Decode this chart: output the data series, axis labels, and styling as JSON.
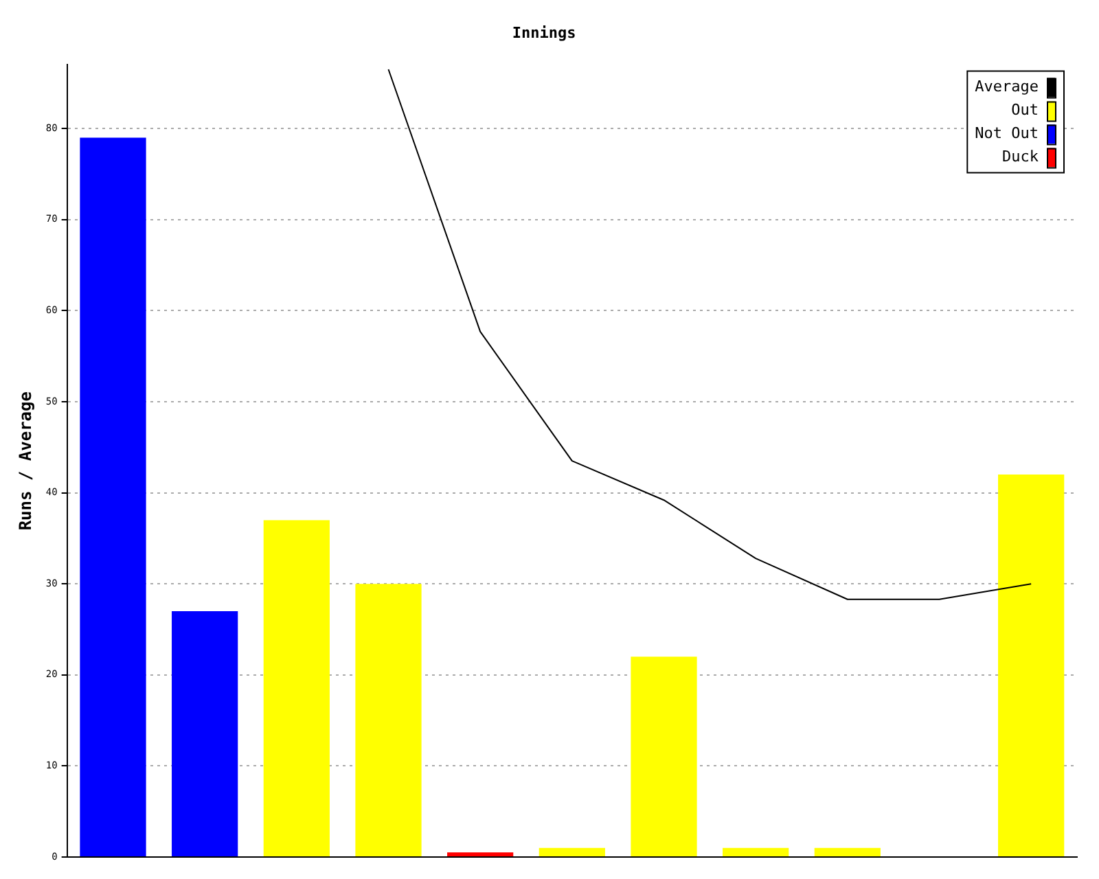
{
  "chart_data": {
    "type": "bar",
    "title": "Innings",
    "ylabel": "Runs / Average",
    "stacked": true,
    "categories": [
      null,
      null,
      null,
      null,
      null,
      null,
      null,
      null,
      null,
      null,
      null
    ],
    "series": [
      {
        "name": "Average",
        "type": "line",
        "color": "#000000",
        "values": [
          null,
          null,
          null,
          86.5,
          57.7,
          43.5,
          39.2,
          32.8,
          28.3,
          28.3,
          30
        ]
      },
      {
        "name": "Out",
        "color": "#ffff00",
        "values": [
          null,
          null,
          37,
          30,
          null,
          1,
          22,
          1,
          1,
          null,
          42
        ]
      },
      {
        "name": "Not Out",
        "color": "#0000ff",
        "values": [
          79,
          27,
          null,
          null,
          null,
          null,
          null,
          null,
          null,
          null,
          null
        ]
      },
      {
        "name": "Duck",
        "color": "#ff0000",
        "values": [
          null,
          null,
          null,
          null,
          0.5,
          null,
          null,
          null,
          null,
          null,
          null
        ]
      }
    ],
    "ylim": [
      0,
      87
    ],
    "yticks": [
      0,
      10,
      20,
      30,
      40,
      50,
      60,
      70,
      80
    ],
    "grid": "y",
    "legend": "top right",
    "marker": "none",
    "line_style": "solid",
    "tick_labels": "y"
  }
}
